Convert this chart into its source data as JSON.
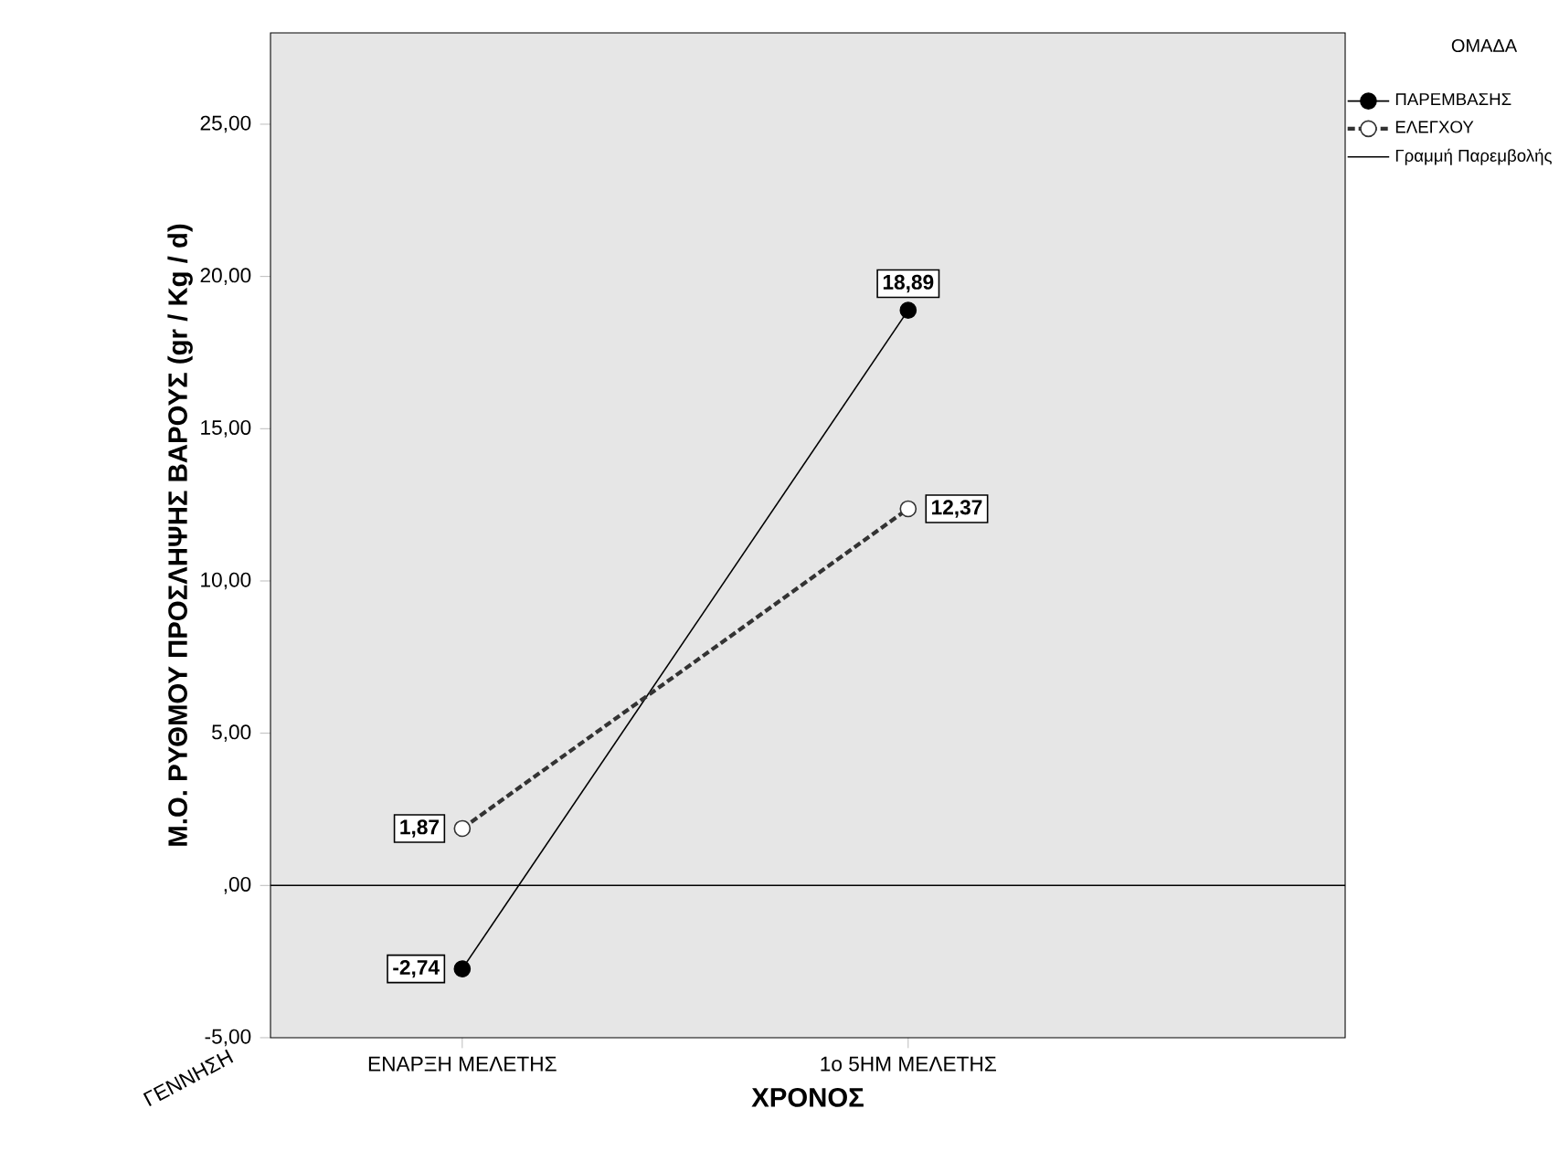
{
  "chart_data": {
    "type": "line",
    "xlabel": "ΧΡΟΝΟΣ",
    "ylabel": "Μ.Ο. ΡΥΘΜΟΥ ΠΡΟΣΛΗΨΗΣ ΒΑΡΟΥΣ (gr / Kg / d)",
    "legend_title": "ΟΜΑΔΑ",
    "legend": "top right",
    "marker": "circle",
    "categories": [
      "ΕΝΑΡΞΗ ΜΕΛΕΤΗΣ",
      "1ο 5ΗΜ ΜΕΛΕΤΗΣ"
    ],
    "series": [
      {
        "name": "ΠΑΡΕΜΒΑΣΗΣ",
        "color": "#000000",
        "line_style": "solid",
        "values": [
          -2.74,
          18.89
        ],
        "value_labels": [
          "-2,74",
          "18,89"
        ]
      },
      {
        "name": "ΕΛΕΓΧΟΥ",
        "color": "#333333",
        "line_style": "dashed",
        "values": [
          1.87,
          12.37
        ],
        "value_labels": [
          "1,87",
          "12,37"
        ]
      }
    ],
    "ylim": [
      -5,
      28
    ],
    "yticks": [
      {
        "value": -5,
        "label": "-5,00"
      },
      {
        "value": 0,
        "label": ",00"
      },
      {
        "value": 5,
        "label": "5,00"
      },
      {
        "value": 10,
        "label": "10,00"
      },
      {
        "value": 15,
        "label": "15,00"
      },
      {
        "value": 20,
        "label": "20,00"
      },
      {
        "value": 25,
        "label": "25,00"
      }
    ],
    "ref_lines": [
      {
        "axis": "y",
        "value": 0,
        "label": "Γραμμή Παρεμβολής",
        "color": "#000000"
      }
    ],
    "annotations": [
      "ΓΕΝΝΗΣΗ"
    ]
  }
}
